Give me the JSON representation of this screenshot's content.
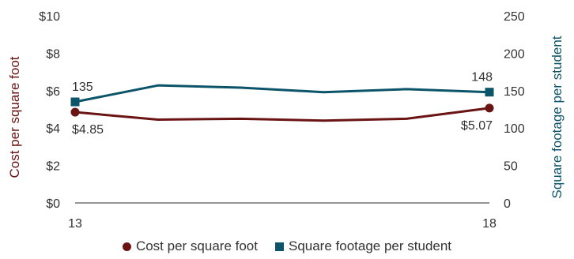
{
  "chart_data": {
    "type": "line",
    "x": [
      "13",
      "14",
      "15",
      "16",
      "17",
      "18"
    ],
    "x_tick_labels": [
      "13",
      "18"
    ],
    "series": [
      {
        "name": "Cost per square foot",
        "axis": "left",
        "color": "#6b1414",
        "marker": "circle",
        "values": [
          4.85,
          4.45,
          4.5,
          4.4,
          4.5,
          5.07
        ],
        "data_labels": [
          {
            "index": 0,
            "text": "$4.85"
          },
          {
            "index": 5,
            "text": "$5.07"
          }
        ]
      },
      {
        "name": "Square footage per student",
        "axis": "right",
        "color": "#0b5469",
        "marker": "square",
        "values": [
          135,
          157,
          154,
          148,
          152,
          148
        ],
        "data_labels": [
          {
            "index": 0,
            "text": "135"
          },
          {
            "index": 5,
            "text": "148"
          }
        ]
      }
    ],
    "left_axis": {
      "label": "Cost per square foot",
      "color": "#6b1414",
      "ylim": [
        0,
        10
      ],
      "ticks": [
        0,
        2,
        4,
        6,
        8,
        10
      ],
      "tick_labels": [
        "$0",
        "$2",
        "$4",
        "$6",
        "$8",
        "$10"
      ]
    },
    "right_axis": {
      "label": "Square footage per student",
      "color": "#0b5469",
      "ylim": [
        0,
        250
      ],
      "ticks": [
        0,
        50,
        100,
        150,
        200,
        250
      ],
      "tick_labels": [
        "0",
        "50",
        "100",
        "150",
        "200",
        "250"
      ]
    },
    "grid": false,
    "legend": {
      "position": "bottom",
      "items": [
        {
          "label": "Cost per square foot",
          "marker": "circle",
          "color": "#6b1414"
        },
        {
          "label": "Square footage per student",
          "marker": "square",
          "color": "#0b5469"
        }
      ]
    }
  }
}
